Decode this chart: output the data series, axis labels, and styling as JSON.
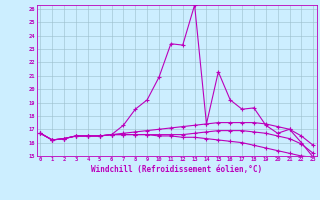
{
  "xlabel": "Windchill (Refroidissement éolien,°C)",
  "bg_color": "#cceeff",
  "grid_color": "#9bbfcc",
  "line_color": "#bb00bb",
  "xmin": 0,
  "xmax": 23,
  "ymin": 15,
  "ymax": 26,
  "series": [
    [
      16.7,
      16.2,
      16.3,
      16.5,
      16.5,
      16.5,
      16.6,
      17.3,
      18.5,
      19.2,
      20.9,
      23.4,
      23.3,
      26.3,
      17.4,
      21.3,
      19.2,
      18.5,
      18.6,
      17.3,
      16.7,
      17.0,
      16.0,
      14.9
    ],
    [
      16.7,
      16.2,
      16.3,
      16.5,
      16.5,
      16.5,
      16.6,
      16.7,
      16.8,
      16.9,
      17.0,
      17.1,
      17.2,
      17.3,
      17.4,
      17.5,
      17.5,
      17.5,
      17.5,
      17.4,
      17.2,
      17.0,
      16.5,
      15.8
    ],
    [
      16.7,
      16.2,
      16.3,
      16.5,
      16.5,
      16.5,
      16.6,
      16.6,
      16.6,
      16.6,
      16.6,
      16.6,
      16.6,
      16.7,
      16.8,
      16.9,
      16.9,
      16.9,
      16.8,
      16.7,
      16.5,
      16.3,
      15.9,
      15.2
    ],
    [
      16.7,
      16.2,
      16.3,
      16.5,
      16.5,
      16.5,
      16.6,
      16.6,
      16.6,
      16.6,
      16.5,
      16.5,
      16.4,
      16.4,
      16.3,
      16.2,
      16.1,
      16.0,
      15.8,
      15.6,
      15.4,
      15.2,
      15.0,
      14.9
    ]
  ]
}
